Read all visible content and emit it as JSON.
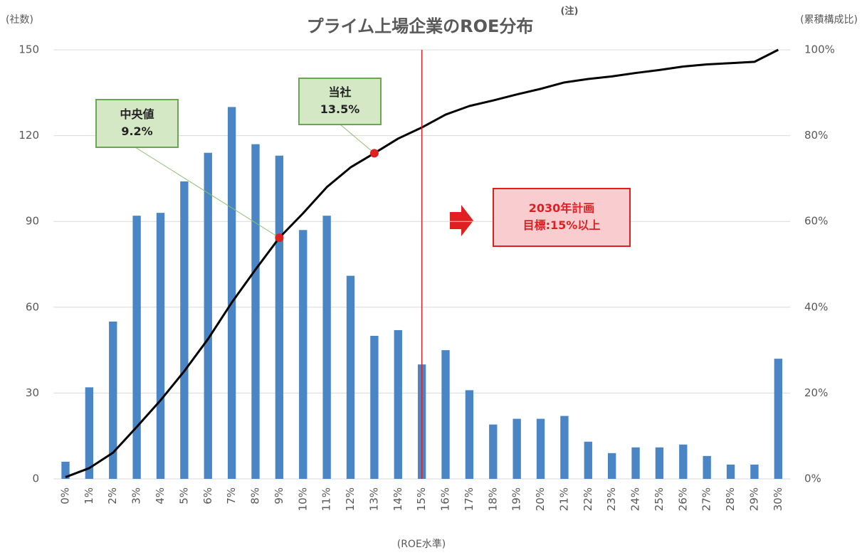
{
  "chart_data": {
    "type": "bar",
    "title": "プライム上場企業のROE分布",
    "title_note": "(注)",
    "y_label": "(社数)",
    "y2_label": "(累積構成比)",
    "x_label": "(ROE水準)",
    "categories": [
      "0%",
      "1%",
      "2%",
      "3%",
      "4%",
      "5%",
      "6%",
      "7%",
      "8%",
      "9%",
      "10%",
      "11%",
      "12%",
      "13%",
      "14%",
      "15%",
      "16%",
      "17%",
      "18%",
      "19%",
      "20%",
      "21%",
      "22%",
      "23%",
      "24%",
      "25%",
      "26%",
      "27%",
      "28%",
      "29%",
      "30%"
    ],
    "series": [
      {
        "type": "bar",
        "color": "#4a86c5",
        "values": [
          6,
          32,
          55,
          92,
          93,
          104,
          114,
          130,
          117,
          113,
          87,
          92,
          71,
          50,
          52,
          40,
          45,
          31,
          19,
          21,
          21,
          22,
          13,
          9,
          11,
          11,
          12,
          8,
          5,
          5,
          42
        ]
      },
      {
        "type": "line",
        "axis": "y2",
        "color": "#000000",
        "values": [
          0.4,
          2.5,
          6.1,
          12.1,
          18.3,
          25.1,
          32.6,
          41.1,
          48.8,
          56.2,
          61.9,
          68.0,
          72.6,
          75.9,
          79.3,
          81.9,
          84.9,
          86.9,
          88.2,
          89.6,
          90.9,
          92.4,
          93.2,
          93.8,
          94.6,
          95.3,
          96.1,
          96.6,
          96.9,
          97.2,
          100
        ]
      }
    ],
    "ylim": [
      0,
      150
    ],
    "yticks": [
      0,
      30,
      60,
      90,
      120,
      150
    ],
    "y2lim": [
      0,
      100
    ],
    "y2ticks": [
      {
        "value": 0,
        "label": "0%"
      },
      {
        "value": 20,
        "label": "20%"
      },
      {
        "value": 40,
        "label": "40%"
      },
      {
        "value": 60,
        "label": "60%"
      },
      {
        "value": 80,
        "label": "80%"
      },
      {
        "value": 100,
        "label": "100%"
      }
    ],
    "grid": true,
    "reference_line": {
      "category": "15%",
      "color": "#e02020"
    },
    "annotations": [
      {
        "lines": [
          "中央値",
          "9.2%"
        ],
        "category": "9%"
      },
      {
        "lines": [
          "当社",
          "13.5%"
        ],
        "category": "13%"
      },
      {
        "lines": [
          "2030年計画",
          "目標:15%以上"
        ]
      }
    ]
  }
}
